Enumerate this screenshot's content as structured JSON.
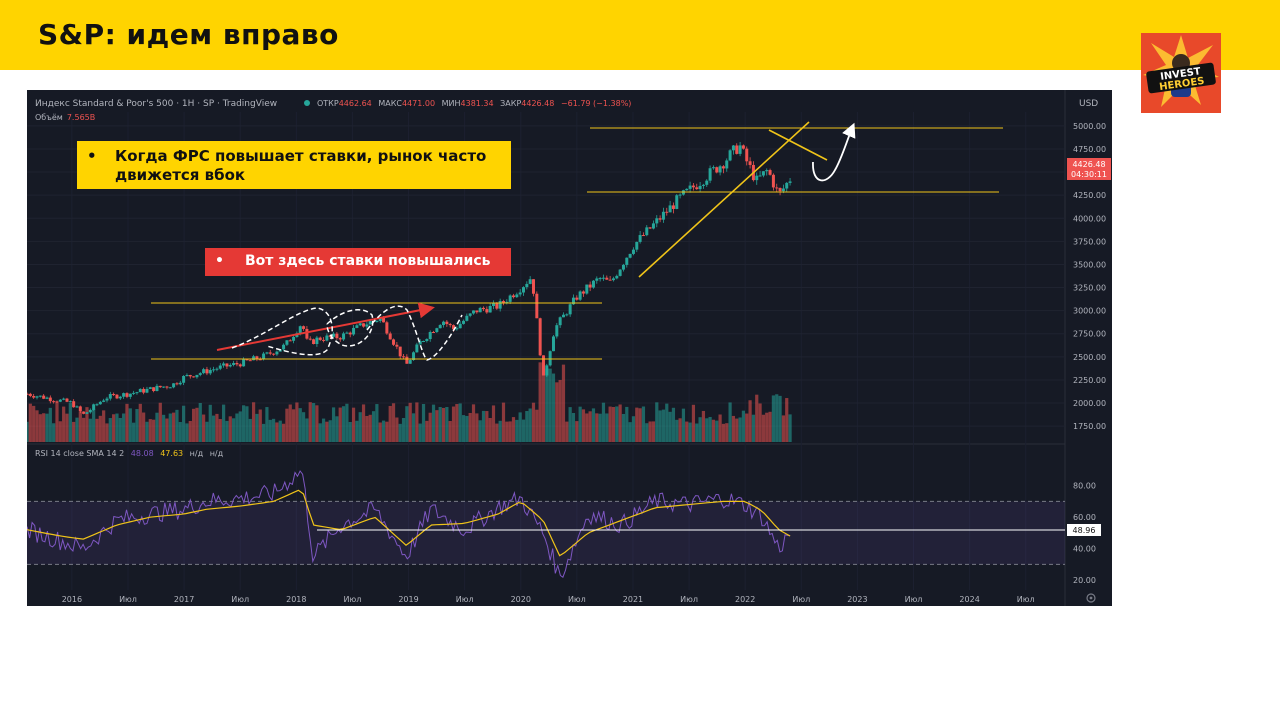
{
  "slide": {
    "title": "S&P: идем вправо",
    "logo_text": [
      "INVEST",
      "HEROES"
    ]
  },
  "callouts": [
    {
      "bullet": "•",
      "text": "Когда ФРС повышает ставки, рынок часто движется вбок"
    },
    {
      "bullet": "•",
      "text": "Вот здесь ставки повышались"
    }
  ],
  "chart_header": {
    "symbol": "Индекс Standard & Poor's 500 · 1Н · SP · TradingView",
    "ohlc_open_label": "ОТКР",
    "ohlc_open": "4462.64",
    "ohlc_high_label": "МАКС",
    "ohlc_high": "4471.00",
    "ohlc_low_label": "МИН",
    "ohlc_low": "4381.34",
    "ohlc_close_label": "ЗАКР",
    "ohlc_close": "4426.48",
    "change": "−61.79 (−1.38%)",
    "volume_label": "Объём",
    "volume": "7.565B",
    "currency": "USD",
    "price_tag": "4426.48",
    "timer": "04:30:11"
  },
  "colors": {
    "background": "#161a25",
    "price_line": "#26a69a",
    "down": "#ef5350",
    "annotation_line": "#f0c419",
    "rsi_line": "#7e57c2",
    "rsi_ma": "#f0c419"
  },
  "chart_data": [
    {
      "type": "line",
      "title": "Индекс Standard & Poor's 500",
      "x_ticks": [
        "2016",
        "Июл",
        "2017",
        "Июл",
        "2018",
        "Июл",
        "2019",
        "Июл",
        "2020",
        "Июл",
        "2021",
        "Июл",
        "2022",
        "Июл",
        "2023",
        "Июл",
        "2024",
        "Июл"
      ],
      "y_ticks": [
        "5000.00",
        "4750.00",
        "4500.00",
        "4250.00",
        "4000.00",
        "3750.00",
        "3500.00",
        "3250.00",
        "3000.00",
        "2750.00",
        "2500.00",
        "2250.00",
        "2000.00",
        "1750.00"
      ],
      "ylim": [
        1600,
        5150
      ],
      "series": [
        {
          "name": "",
          "x": [
            2015.6,
            2016.0,
            2016.1,
            2016.3,
            2016.5,
            2016.7,
            2016.9,
            2017.0,
            2017.3,
            2017.5,
            2017.7,
            2017.9,
            2018.05,
            2018.1,
            2018.2,
            2018.4,
            2018.6,
            2018.75,
            2018.85,
            2018.98,
            2019.1,
            2019.3,
            2019.4,
            2019.6,
            2019.8,
            2020.0,
            2020.1,
            2020.2,
            2020.3,
            2020.5,
            2020.7,
            2020.8,
            2021.0,
            2021.2,
            2021.4,
            2021.6,
            2021.8,
            2021.95,
            2022.0,
            2022.1,
            2022.2,
            2022.3,
            2022.4
          ],
          "values": [
            2100,
            2000,
            1870,
            2060,
            2100,
            2150,
            2200,
            2280,
            2380,
            2430,
            2500,
            2620,
            2870,
            2640,
            2700,
            2720,
            2850,
            2920,
            2700,
            2410,
            2650,
            2900,
            2800,
            3000,
            3050,
            3250,
            3370,
            2250,
            2800,
            3150,
            3350,
            3300,
            3700,
            3950,
            4200,
            4400,
            4600,
            4790,
            4650,
            4400,
            4520,
            4250,
            4426
          ]
        }
      ],
      "annotations": {
        "horizontal_levels": [
          2950,
          2400,
          4800,
          4120
        ],
        "marker_price": 4426.48
      }
    },
    {
      "type": "line",
      "title": "RSI 14 close SMA 14 2",
      "legend": [
        "48.08",
        "47.63",
        "н/д",
        "н/д"
      ],
      "y_ticks": [
        "80.00",
        "60.00",
        "40.00",
        "20.00"
      ],
      "ylim": [
        15,
        95
      ],
      "levels": [
        70,
        30
      ],
      "current_label": "48.96",
      "series": [
        {
          "name": "",
          "x": [
            2015.6,
            2015.9,
            2016.1,
            2016.4,
            2016.7,
            2017.0,
            2017.2,
            2017.5,
            2017.8,
            2018.05,
            2018.15,
            2018.4,
            2018.7,
            2018.98,
            2019.2,
            2019.5,
            2019.8,
            2020.0,
            2020.2,
            2020.35,
            2020.6,
            2020.9,
            2021.2,
            2021.5,
            2021.8,
            2022.0,
            2022.15,
            2022.3,
            2022.4
          ],
          "values": [
            52,
            45,
            40,
            58,
            62,
            65,
            70,
            72,
            75,
            90,
            35,
            55,
            65,
            35,
            65,
            52,
            66,
            72,
            50,
            22,
            62,
            55,
            70,
            68,
            72,
            68,
            60,
            40,
            50
          ]
        },
        {
          "name": "",
          "x": [
            2015.6,
            2015.9,
            2016.1,
            2016.4,
            2016.7,
            2017.0,
            2017.2,
            2017.5,
            2017.8,
            2018.05,
            2018.15,
            2018.4,
            2018.7,
            2018.98,
            2019.2,
            2019.5,
            2019.8,
            2020.0,
            2020.2,
            2020.35,
            2020.6,
            2020.9,
            2021.2,
            2021.5,
            2021.8,
            2022.0,
            2022.15,
            2022.3,
            2022.4
          ],
          "values": [
            52,
            48,
            46,
            55,
            60,
            62,
            65,
            67,
            70,
            78,
            55,
            52,
            60,
            42,
            55,
            56,
            62,
            70,
            58,
            35,
            50,
            58,
            66,
            68,
            70,
            70,
            64,
            52,
            48
          ]
        }
      ]
    }
  ]
}
